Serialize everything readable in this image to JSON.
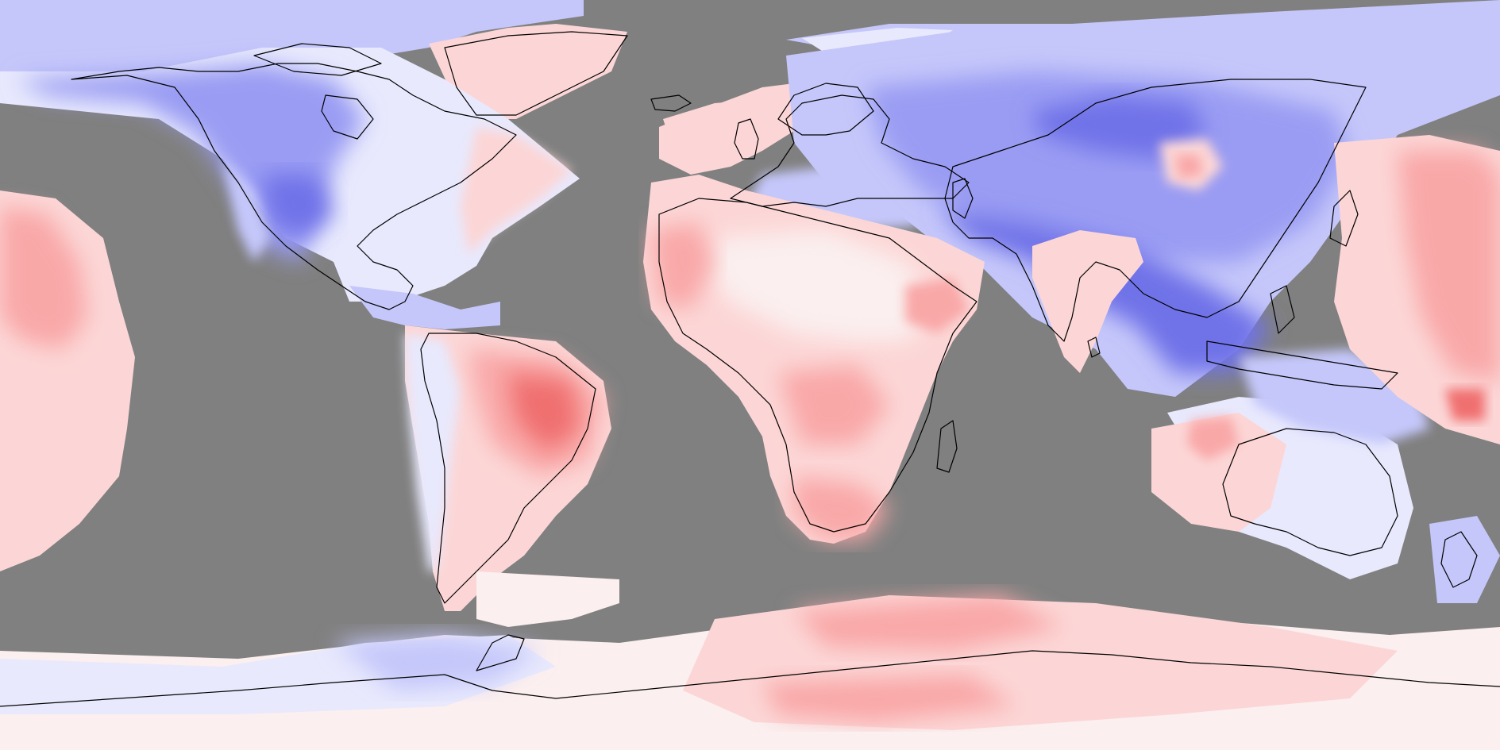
{
  "map": {
    "projection": "equirectangular",
    "background_color": "#808080",
    "color_scale": {
      "strong_cold": "#6f72e8",
      "cold": "#9a9cf3",
      "cool": "#c5c7fa",
      "slight_cool": "#e8e9fd",
      "neutral": "#fbefef",
      "slight_warm": "#fcd6d6",
      "warm": "#f9a8a8",
      "hot": "#f07070",
      "very_hot": "#e84848"
    },
    "no_data_color": "#808080",
    "coastline_color": "#000000"
  }
}
